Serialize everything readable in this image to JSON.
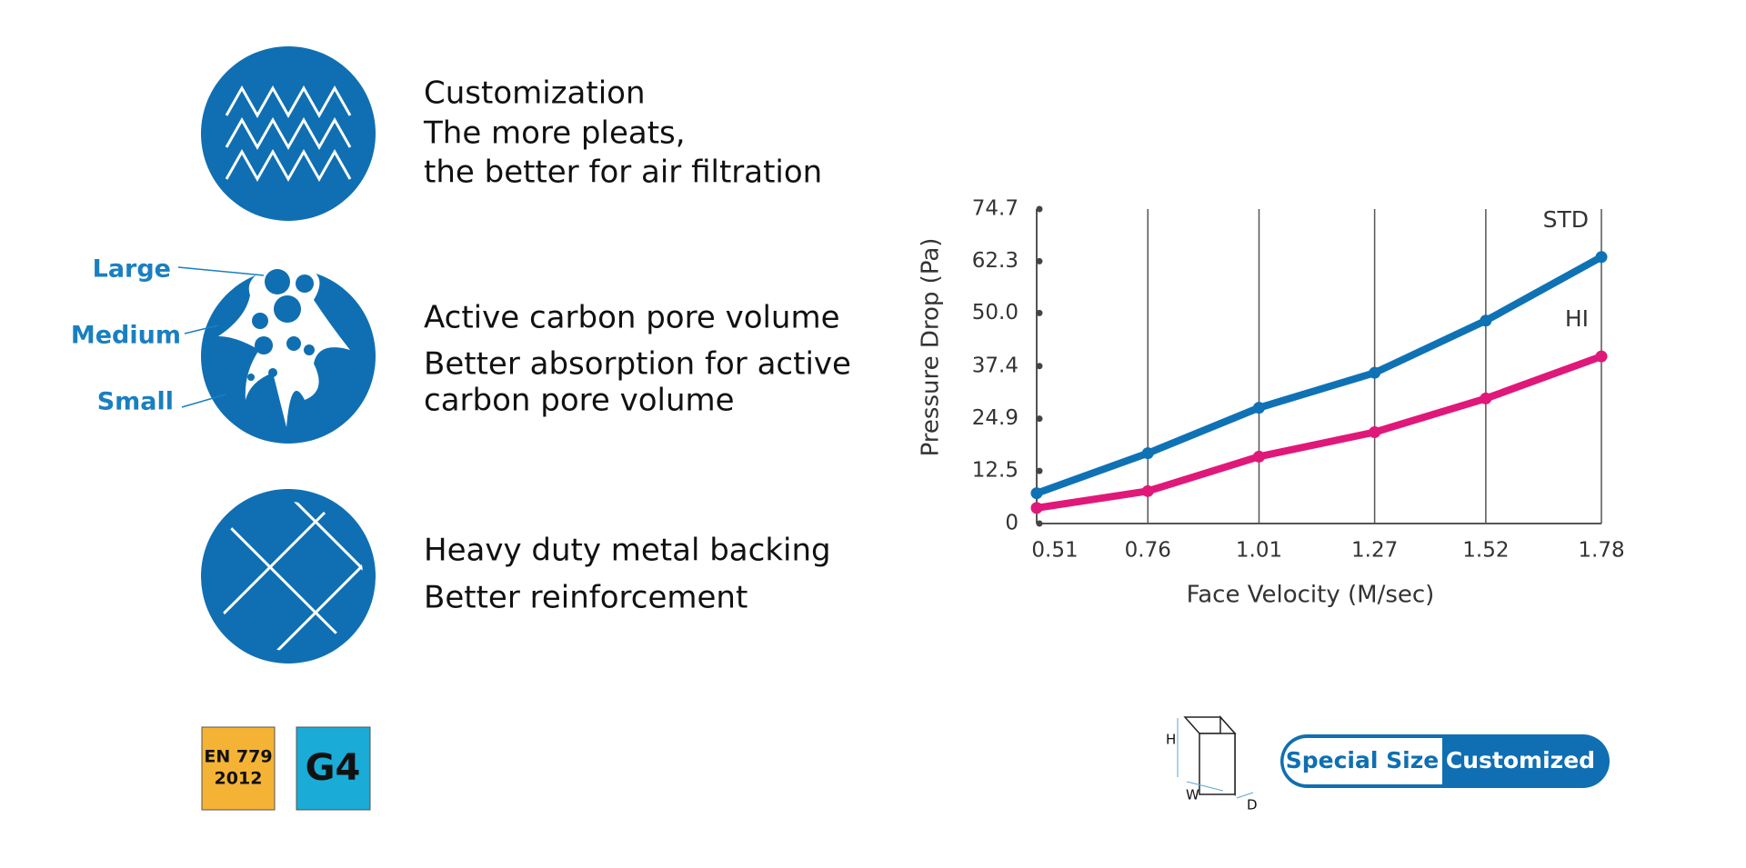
{
  "features": [
    {
      "lines": [
        "Customization",
        "The more pleats,",
        "the better for air filtration"
      ]
    },
    {
      "lines": [
        "Active carbon pore volume",
        "Better absorption for active",
        "carbon pore volume"
      ]
    },
    {
      "lines": [
        "Heavy duty metal backing",
        "Better reinforcement"
      ]
    }
  ],
  "pore_labels": [
    "Large",
    "Medium",
    "Small"
  ],
  "certifications": {
    "standard": [
      "EN 779",
      "2012"
    ],
    "grade": "G4"
  },
  "size": {
    "dimensions": [
      "H",
      "W",
      "D"
    ],
    "special": "Special Size",
    "customized": "Customized"
  },
  "chart_data": {
    "type": "line",
    "x_label": "Face Velocity (M/sec)",
    "y_label": "Pressure Drop (Pa)",
    "x": [
      0.51,
      0.76,
      1.01,
      1.27,
      1.52,
      1.78
    ],
    "xlim": [
      0.51,
      1.78
    ],
    "xticks": [
      0.51,
      0.76,
      1.01,
      1.27,
      1.52,
      1.78
    ],
    "ylim": [
      0,
      74.7
    ],
    "yticks": [
      0,
      12.5,
      24.9,
      37.4,
      {
        "value": 50,
        "label": "50.0"
      },
      62.3,
      74.7
    ],
    "grid": true,
    "series": [
      {
        "name": "STD",
        "color": "#0f72b5",
        "values": [
          7.2,
          16.7,
          27.5,
          35.8,
          48.2,
          63.3
        ]
      },
      {
        "name": "HI",
        "color": "#e0187a",
        "values": [
          3.7,
          7.7,
          15.9,
          21.7,
          29.7,
          39.7
        ]
      }
    ]
  }
}
